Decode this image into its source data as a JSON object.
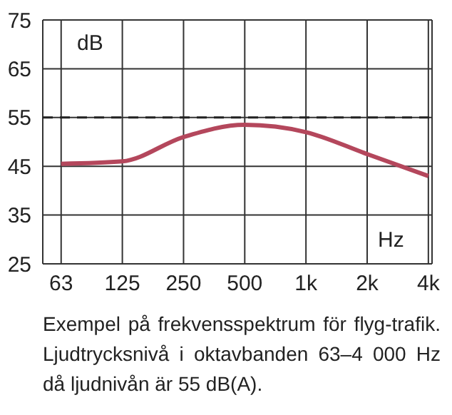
{
  "chart_data": {
    "type": "line",
    "categories": [
      "63",
      "125",
      "250",
      "500",
      "1k",
      "2k",
      "4k"
    ],
    "series": [
      {
        "color": "#b4475c",
        "values": [
          45.5,
          46,
          51,
          53.5,
          52,
          47.5,
          43
        ]
      }
    ],
    "ylim": [
      25,
      75
    ],
    "yticks": [
      25,
      35,
      45,
      55,
      65,
      75
    ],
    "ylabel": "dB",
    "xlabel": "Hz",
    "grid": true,
    "marker": "none",
    "line_style": "solid",
    "ref_lines": [
      {
        "axis": "y",
        "value": 55,
        "line_style": "dashed",
        "color": "#222222"
      }
    ],
    "annotations": [
      "Exempel på frekvensspektrum för flyg-trafik. Ljudtrycksnivå i oktavbanden 63–4 000 Hz då ljudnivån är 55 dB(A)."
    ]
  }
}
